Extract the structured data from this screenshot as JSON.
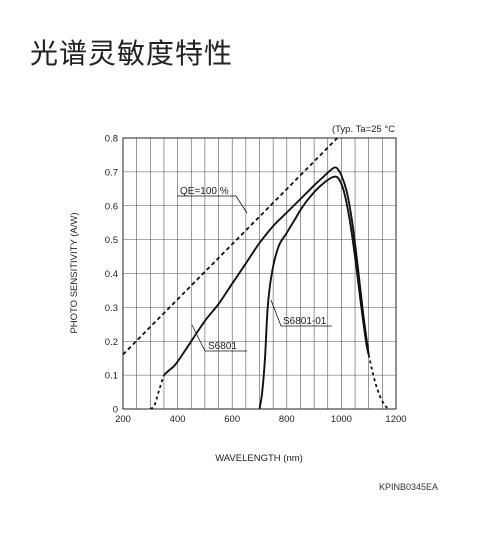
{
  "page": {
    "title": "光谱灵敏度特性"
  },
  "chart_data": {
    "type": "line",
    "title": "",
    "note": "(Typ. Ta=25 °C",
    "xlabel": "WAVELENGTH (nm)",
    "ylabel": "PHOTO SENSITIVITY (A/W)",
    "xlim": [
      200,
      1200
    ],
    "ylim": [
      0,
      0.8
    ],
    "x_ticks": [
      200,
      400,
      600,
      800,
      1000,
      1200
    ],
    "x_tick_labels": [
      "200",
      "400",
      "600",
      "800",
      "1000",
      "1200"
    ],
    "y_ticks": [
      0,
      0.1,
      0.2,
      0.3,
      0.4,
      0.5,
      0.6,
      0.7,
      0.8
    ],
    "y_tick_labels": [
      "0",
      "0.1",
      "0.2",
      "0.3",
      "0.4",
      "0.5",
      "0.6",
      "0.7",
      "0.8"
    ],
    "grid": true,
    "code": "KPINB0345EA",
    "series": [
      {
        "name": "QE=100 %",
        "style": "dashed",
        "points": [
          [
            200,
            0.161
          ],
          [
            985,
            0.8
          ]
        ]
      },
      {
        "name": "S6801",
        "style": "solid",
        "dashed_points": [
          [
            300,
            0.0
          ],
          [
            315,
            0.01
          ],
          [
            330,
            0.05
          ],
          [
            350,
            0.1
          ]
        ],
        "points": [
          [
            350,
            0.1
          ],
          [
            370,
            0.115
          ],
          [
            385,
            0.125
          ],
          [
            400,
            0.14
          ],
          [
            450,
            0.2
          ],
          [
            500,
            0.26
          ],
          [
            550,
            0.31
          ],
          [
            600,
            0.37
          ],
          [
            650,
            0.43
          ],
          [
            700,
            0.49
          ],
          [
            750,
            0.54
          ],
          [
            800,
            0.58
          ],
          [
            850,
            0.62
          ],
          [
            900,
            0.66
          ],
          [
            940,
            0.69
          ],
          [
            960,
            0.705
          ],
          [
            975,
            0.713
          ],
          [
            985,
            0.71
          ],
          [
            1000,
            0.69
          ],
          [
            1020,
            0.64
          ],
          [
            1040,
            0.55
          ],
          [
            1060,
            0.42
          ],
          [
            1080,
            0.28
          ],
          [
            1100,
            0.16
          ]
        ],
        "dashed_end": [
          [
            1100,
            0.16
          ],
          [
            1120,
            0.09
          ],
          [
            1140,
            0.04
          ],
          [
            1160,
            0.01
          ],
          [
            1175,
            0.0
          ]
        ]
      },
      {
        "name": "S6801-01",
        "style": "solid",
        "points": [
          [
            700,
            0.0
          ],
          [
            710,
            0.05
          ],
          [
            720,
            0.15
          ],
          [
            730,
            0.3
          ],
          [
            745,
            0.4
          ],
          [
            770,
            0.48
          ],
          [
            800,
            0.52
          ],
          [
            830,
            0.56
          ],
          [
            860,
            0.6
          ],
          [
            900,
            0.64
          ],
          [
            940,
            0.67
          ],
          [
            970,
            0.685
          ],
          [
            990,
            0.68
          ],
          [
            1010,
            0.64
          ],
          [
            1030,
            0.56
          ],
          [
            1050,
            0.45
          ],
          [
            1070,
            0.32
          ],
          [
            1090,
            0.2
          ],
          [
            1100,
            0.16
          ]
        ]
      }
    ],
    "annotations": [
      {
        "text": "QE=100 %",
        "series": "QE=100 %"
      },
      {
        "text": "S6801",
        "series": "S6801"
      },
      {
        "text": "S6801-01",
        "series": "S6801-01"
      }
    ]
  }
}
